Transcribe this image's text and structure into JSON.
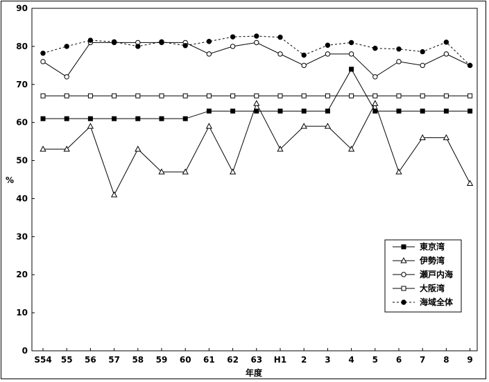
{
  "chart_data": {
    "type": "line",
    "xlabel": "年度",
    "ylabel": "%",
    "ylim": [
      0,
      90
    ],
    "yticks": [
      0,
      10,
      20,
      30,
      40,
      50,
      60,
      70,
      80,
      90
    ],
    "categories": [
      "S54",
      "55",
      "56",
      "57",
      "58",
      "59",
      "60",
      "61",
      "62",
      "63",
      "H1",
      "2",
      "3",
      "4",
      "5",
      "6",
      "7",
      "8",
      "9"
    ],
    "grid": false,
    "legend_position": "bottom-right",
    "series": [
      {
        "name": "東京湾",
        "marker": "filled-square",
        "line": "solid",
        "values": [
          61,
          61,
          61,
          61,
          61,
          61,
          61,
          63,
          63,
          63,
          63,
          63,
          63,
          74,
          63,
          63,
          63,
          63,
          63
        ]
      },
      {
        "name": "伊勢湾",
        "marker": "open-triangle",
        "line": "solid",
        "values": [
          53,
          53,
          59,
          41,
          53,
          47,
          47,
          59,
          47,
          65,
          53,
          59,
          59,
          53,
          65,
          47,
          56,
          56,
          44
        ]
      },
      {
        "name": "瀬戸内海",
        "marker": "open-circle",
        "line": "solid",
        "values": [
          76,
          72,
          81,
          81,
          81,
          81,
          81,
          78,
          80,
          81,
          78,
          75,
          78,
          78,
          72,
          76,
          75,
          78,
          75
        ]
      },
      {
        "name": "大阪湾",
        "marker": "open-square",
        "line": "solid",
        "values": [
          67,
          67,
          67,
          67,
          67,
          67,
          67,
          67,
          67,
          67,
          67,
          67,
          67,
          67,
          67,
          67,
          67,
          67,
          67
        ]
      },
      {
        "name": "海域全体",
        "marker": "filled-circle",
        "line": "dashed",
        "values": [
          78.2,
          80,
          81.6,
          81.2,
          80,
          81.2,
          80.2,
          81.3,
          82.5,
          82.7,
          82.4,
          77.7,
          80.3,
          81,
          79.5,
          79.3,
          78.6,
          81.1,
          75
        ]
      }
    ]
  }
}
